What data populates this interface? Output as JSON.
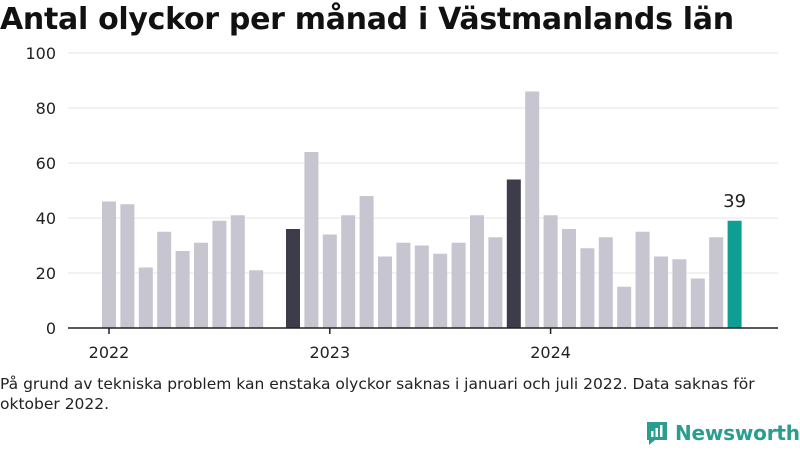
{
  "title": "Antal olyckor per månad i Västmanlands län",
  "note": "På grund av tekniska problem kan enstaka olyckor saknas i januari och juli 2022. Data saknas för oktober 2022.",
  "brand": {
    "name": "Newsworthy",
    "icon": "newsworthy-logo-icon"
  },
  "colors": {
    "default": "#c6c5d0",
    "highlight": "#3d3c4a",
    "latest": "#0f9e94",
    "axis": "#222222",
    "grid": "#e6e6e6"
  },
  "chart_data": {
    "type": "bar",
    "title": "Antal olyckor per månad i Västmanlands län",
    "xlabel": "",
    "ylabel": "",
    "ylim": [
      0,
      100
    ],
    "yticks": [
      0,
      20,
      40,
      60,
      80,
      100
    ],
    "grid": true,
    "legend": "none",
    "x_tick_labels": [
      "2022",
      "2023",
      "2024"
    ],
    "categories": [
      "2022-01",
      "2022-02",
      "2022-03",
      "2022-04",
      "2022-05",
      "2022-06",
      "2022-07",
      "2022-08",
      "2022-09",
      "2022-10",
      "2022-11",
      "2022-12",
      "2023-01",
      "2023-02",
      "2023-03",
      "2023-04",
      "2023-05",
      "2023-06",
      "2023-07",
      "2023-08",
      "2023-09",
      "2023-10",
      "2023-11",
      "2023-12",
      "2024-01",
      "2024-02",
      "2024-03",
      "2024-04",
      "2024-05",
      "2024-06",
      "2024-07",
      "2024-08",
      "2024-09",
      "2024-10",
      "2024-11"
    ],
    "values": [
      46,
      45,
      22,
      35,
      28,
      31,
      39,
      41,
      21,
      null,
      36,
      64,
      34,
      41,
      48,
      26,
      31,
      30,
      27,
      31,
      41,
      33,
      54,
      86,
      41,
      36,
      29,
      33,
      15,
      35,
      26,
      25,
      18,
      33,
      39
    ],
    "highlighted": [
      "2022-11",
      "2023-11"
    ],
    "latest": "2024-11",
    "annotations": [
      {
        "category": "2024-11",
        "label": "39"
      }
    ]
  }
}
